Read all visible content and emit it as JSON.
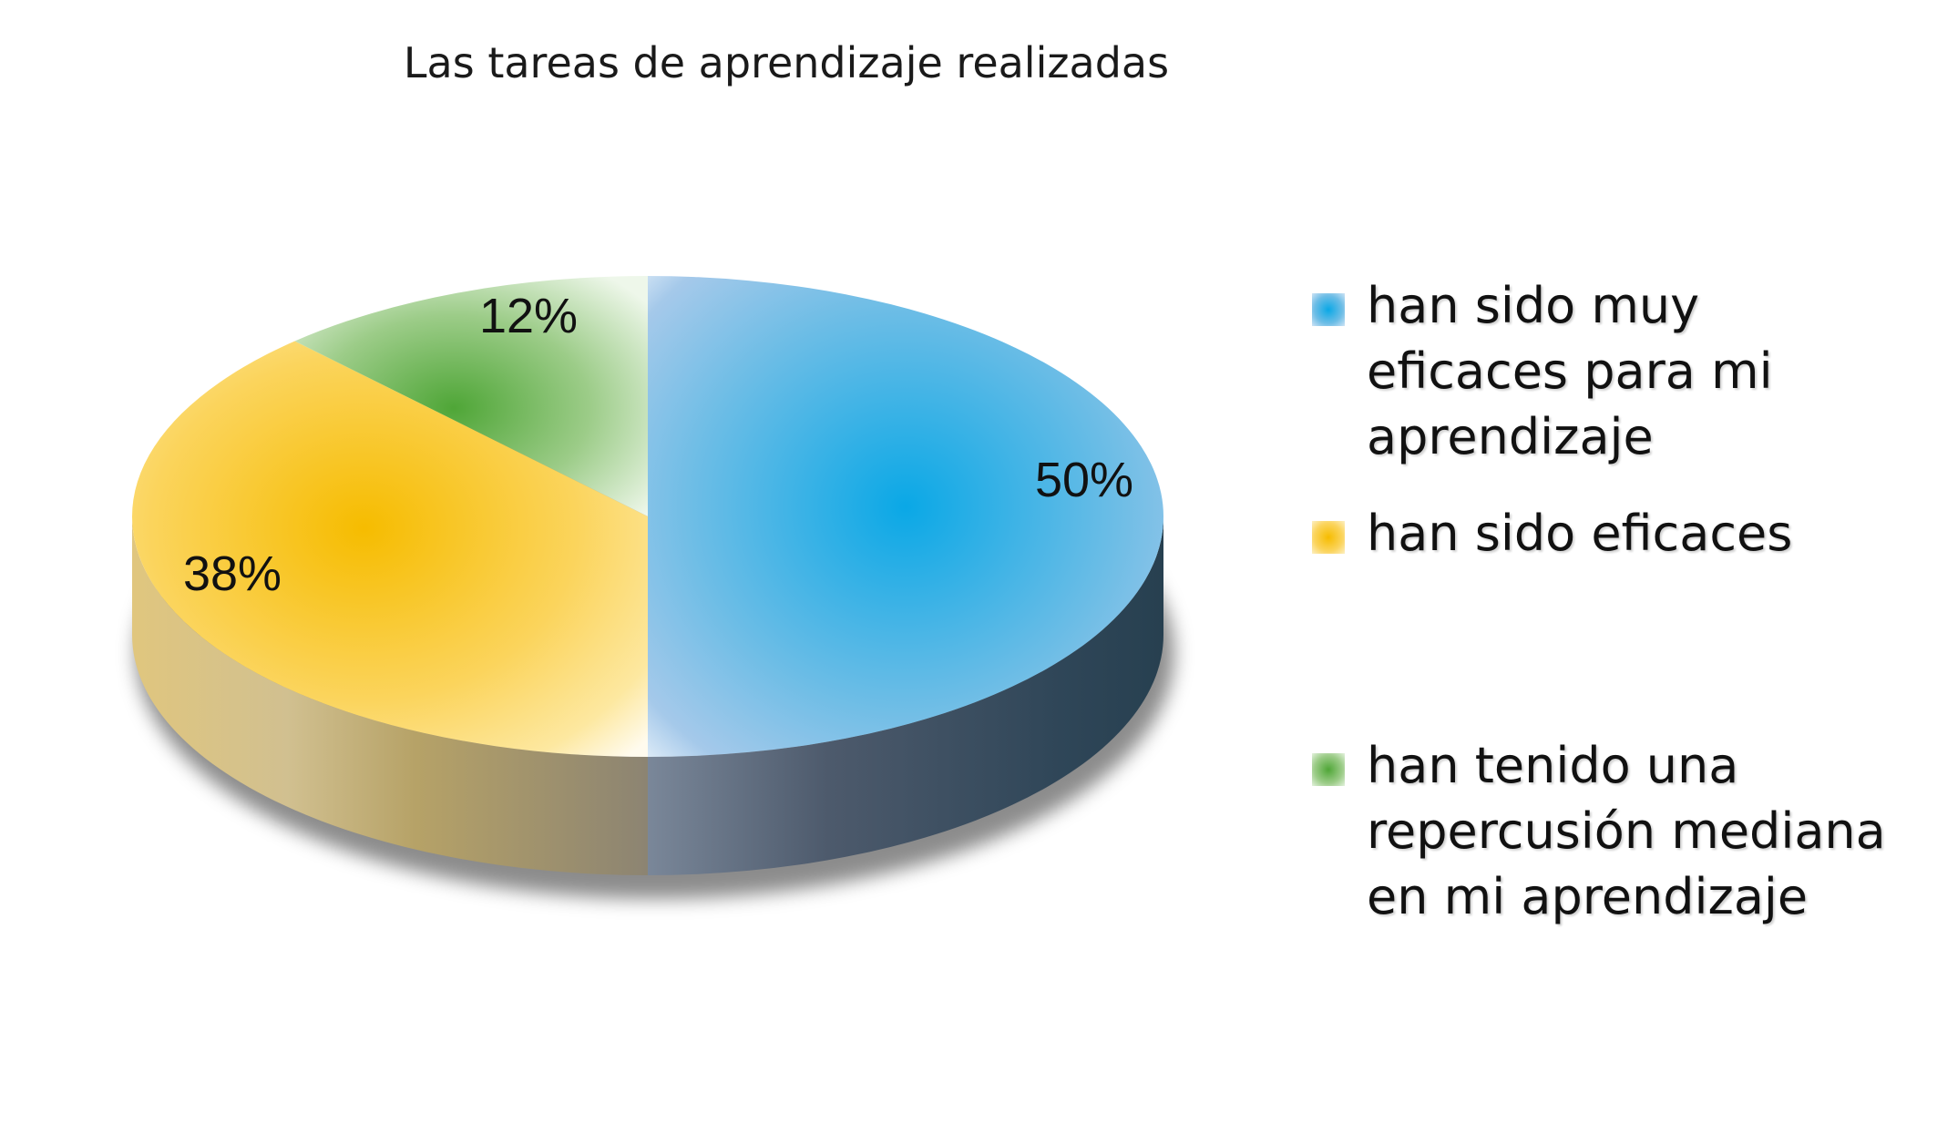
{
  "chart_data": {
    "type": "pie",
    "title": "Las tareas de aprendizaje realizadas",
    "slices": [
      {
        "label": "han sido muy eficaces para mi aprendizaje",
        "value": 50,
        "display": "50%",
        "color": "#1aaee8"
      },
      {
        "label": "han sido eficaces",
        "value": 38,
        "display": "38%",
        "color": "#f8c300"
      },
      {
        "label": "han tenido una repercusión mediana en mi aprendizaje",
        "value": 12,
        "display": "12%",
        "color": "#5aaa3c"
      }
    ],
    "legend_position": "right",
    "style": "3d"
  }
}
